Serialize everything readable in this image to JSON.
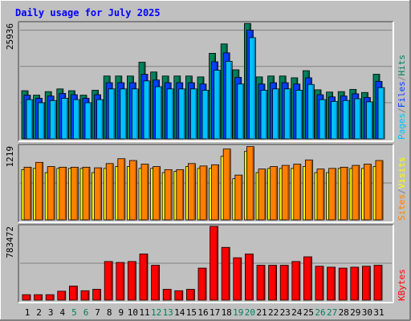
{
  "title": "Daily usage for July 2025",
  "colors": {
    "background": "#c0c0c0",
    "frame_dark": "#808080",
    "title_text": "#0000ff",
    "hits": "#00805c",
    "files": "#0040ff",
    "pages": "#00c0ff",
    "visits": "#ffff00",
    "sites": "#ff8000",
    "kbytes": "#ff0000",
    "weekend_day": "#00805c",
    "weekday_day": "#000000"
  },
  "chart_data": [
    {
      "type": "bar",
      "panel": "hits_files_pages",
      "ymax_label": "25936",
      "ylim": [
        0,
        25936
      ],
      "legend_words": [
        {
          "text": "Pages",
          "color_key": "pages"
        },
        {
          "text": "/",
          "color_key": "frame_dark"
        },
        {
          "text": "Files",
          "color_key": "files"
        },
        {
          "text": "/",
          "color_key": "frame_dark"
        },
        {
          "text": "Hits",
          "color_key": "hits"
        }
      ],
      "categories": [
        "1",
        "2",
        "3",
        "4",
        "5",
        "6",
        "7",
        "8",
        "9",
        "10",
        "11",
        "12",
        "13",
        "14",
        "15",
        "16",
        "17",
        "18",
        "19",
        "20",
        "21",
        "22",
        "23",
        "24",
        "25",
        "26",
        "27",
        "28",
        "29",
        "30",
        "31"
      ],
      "series": [
        {
          "name": "Hits",
          "color_key": "hits",
          "values": [
            10800,
            9800,
            10600,
            11200,
            10800,
            9800,
            10900,
            14100,
            14100,
            14100,
            17200,
            15000,
            14100,
            14100,
            14100,
            13900,
            19200,
            21300,
            15500,
            25900,
            13900,
            14100,
            14100,
            13700,
            15300,
            11000,
            10500,
            10600,
            11100,
            10400,
            14500
          ]
        },
        {
          "name": "Files",
          "color_key": "files",
          "values": [
            9800,
            9100,
            9600,
            10200,
            9900,
            9100,
            9900,
            12600,
            12600,
            12600,
            14500,
            13200,
            12600,
            12600,
            12600,
            12300,
            17300,
            19300,
            13800,
            24400,
            12300,
            12600,
            12600,
            12300,
            13700,
            9900,
            9400,
            9600,
            10100,
            9300,
            12900
          ]
        },
        {
          "name": "Pages",
          "color_key": "pages",
          "values": [
            8800,
            8100,
            8600,
            9100,
            8800,
            8100,
            8800,
            11200,
            11200,
            11200,
            13000,
            11700,
            11200,
            11200,
            11200,
            10900,
            15400,
            17400,
            12300,
            22700,
            10900,
            11200,
            11200,
            10900,
            12200,
            8800,
            8400,
            8600,
            9000,
            8300,
            11500
          ]
        }
      ]
    },
    {
      "type": "bar",
      "panel": "visits_sites",
      "ymax_label": "1219",
      "ylim": [
        0,
        1219
      ],
      "legend_words": [
        {
          "text": "Sites",
          "color_key": "sites"
        },
        {
          "text": "/",
          "color_key": "frame_dark"
        },
        {
          "text": "Visits",
          "color_key": "visits"
        }
      ],
      "categories": [
        "1",
        "2",
        "3",
        "4",
        "5",
        "6",
        "7",
        "8",
        "9",
        "10",
        "11",
        "12",
        "13",
        "14",
        "15",
        "16",
        "17",
        "18",
        "19",
        "20",
        "21",
        "22",
        "23",
        "24",
        "25",
        "26",
        "27",
        "28",
        "29",
        "30",
        "31"
      ],
      "series": [
        {
          "name": "Visits",
          "color_key": "visits",
          "values": [
            830,
            850,
            780,
            850,
            850,
            850,
            780,
            850,
            880,
            880,
            850,
            850,
            780,
            800,
            880,
            850,
            850,
            1050,
            680,
            1130,
            780,
            850,
            850,
            850,
            880,
            780,
            780,
            850,
            850,
            850,
            880
          ]
        },
        {
          "name": "Sites",
          "color_key": "sites",
          "values": [
            870,
            950,
            880,
            870,
            870,
            870,
            860,
            930,
            1010,
            980,
            920,
            880,
            830,
            830,
            930,
            890,
            910,
            1170,
            740,
            1210,
            840,
            880,
            900,
            920,
            990,
            840,
            850,
            870,
            900,
            920,
            980
          ]
        }
      ]
    },
    {
      "type": "bar",
      "panel": "kbytes",
      "ymax_label": "783472",
      "ylim": [
        0,
        783472
      ],
      "legend_words": [
        {
          "text": "KBytes",
          "color_key": "kbytes"
        }
      ],
      "categories": [
        "1",
        "2",
        "3",
        "4",
        "5",
        "6",
        "7",
        "8",
        "9",
        "10",
        "11",
        "12",
        "13",
        "14",
        "15",
        "16",
        "17",
        "18",
        "19",
        "20",
        "21",
        "22",
        "23",
        "24",
        "25",
        "26",
        "27",
        "28",
        "29",
        "30",
        "31"
      ],
      "series": [
        {
          "name": "KBytes",
          "color_key": "kbytes",
          "values": [
            58000,
            58000,
            58000,
            95000,
            150000,
            100000,
            115000,
            410000,
            400000,
            410000,
            490000,
            370000,
            115000,
            100000,
            115000,
            340000,
            783000,
            560000,
            450000,
            490000,
            370000,
            370000,
            370000,
            410000,
            460000,
            360000,
            350000,
            340000,
            350000,
            360000,
            370000
          ]
        }
      ]
    }
  ],
  "weekend_days": [
    "5",
    "6",
    "12",
    "13",
    "19",
    "20",
    "26",
    "27"
  ]
}
